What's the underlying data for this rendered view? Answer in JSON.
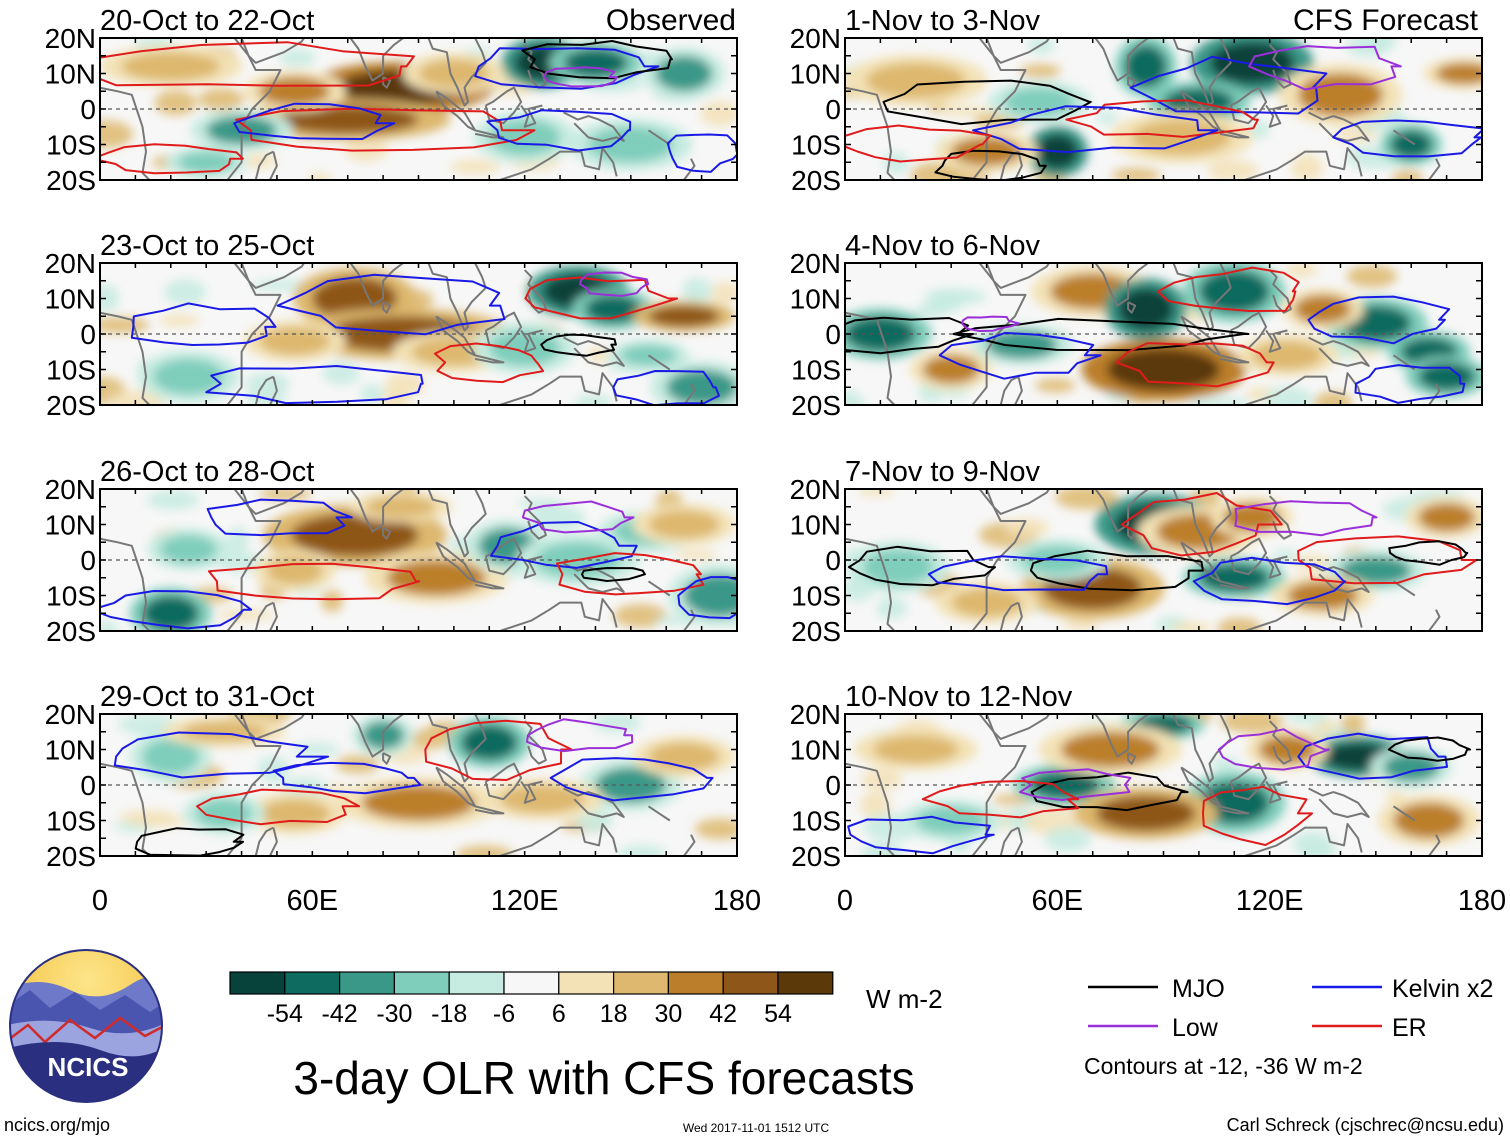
{
  "chart_data": {
    "type": "heatmap",
    "title": "3-day OLR with CFS forecasts",
    "variable": "OLR anomaly",
    "units": "W m-2",
    "x_axis": {
      "ticks": [
        "0",
        "60E",
        "120E",
        "180"
      ],
      "range": [
        0,
        180
      ]
    },
    "y_axis": {
      "ticks": [
        "20N",
        "10N",
        "0",
        "10S",
        "20S"
      ],
      "range": [
        -20,
        20
      ]
    },
    "column_labels": {
      "left": "Observed",
      "right": "CFS Forecast"
    },
    "panels": [
      {
        "id": "p1",
        "column": "left",
        "period": "20-Oct to 22-Oct"
      },
      {
        "id": "p2",
        "column": "left",
        "period": "23-Oct to 25-Oct"
      },
      {
        "id": "p3",
        "column": "left",
        "period": "26-Oct to 28-Oct"
      },
      {
        "id": "p4",
        "column": "left",
        "period": "29-Oct to 31-Oct"
      },
      {
        "id": "p5",
        "column": "right",
        "period": "1-Nov to 3-Nov"
      },
      {
        "id": "p6",
        "column": "right",
        "period": "4-Nov to 6-Nov"
      },
      {
        "id": "p7",
        "column": "right",
        "period": "7-Nov to 9-Nov"
      },
      {
        "id": "p8",
        "column": "right",
        "period": "10-Nov to 12-Nov"
      }
    ],
    "colorbar": {
      "colors": [
        "#07433a",
        "#0d6b5f",
        "#3a9888",
        "#7fcdbb",
        "#c6ebe0",
        "#f7f7f7",
        "#f3e2b6",
        "#ddb86e",
        "#bb7f2b",
        "#8e5618",
        "#5c3909"
      ],
      "labels": [
        "-54",
        "-42",
        "-30",
        "-18",
        "-6",
        "6",
        "18",
        "30",
        "42",
        "54"
      ],
      "units_label": "W m-2"
    },
    "legend": {
      "entries": [
        {
          "name": "MJO",
          "color": "#000000"
        },
        {
          "name": "Kelvin x2",
          "color": "#1a1ae6"
        },
        {
          "name": "Low",
          "color": "#9b30d9"
        },
        {
          "name": "ER",
          "color": "#e01b1b"
        }
      ],
      "note": "Contours at -12, -36 W m-2"
    }
  },
  "footer": {
    "logo_text": "NCICS",
    "site": "ncics.org/mjo",
    "timestamp": "Wed 2017-11-01 1512 UTC",
    "credit": "Carl Schreck (cjschrec@ncsu.edu)"
  }
}
